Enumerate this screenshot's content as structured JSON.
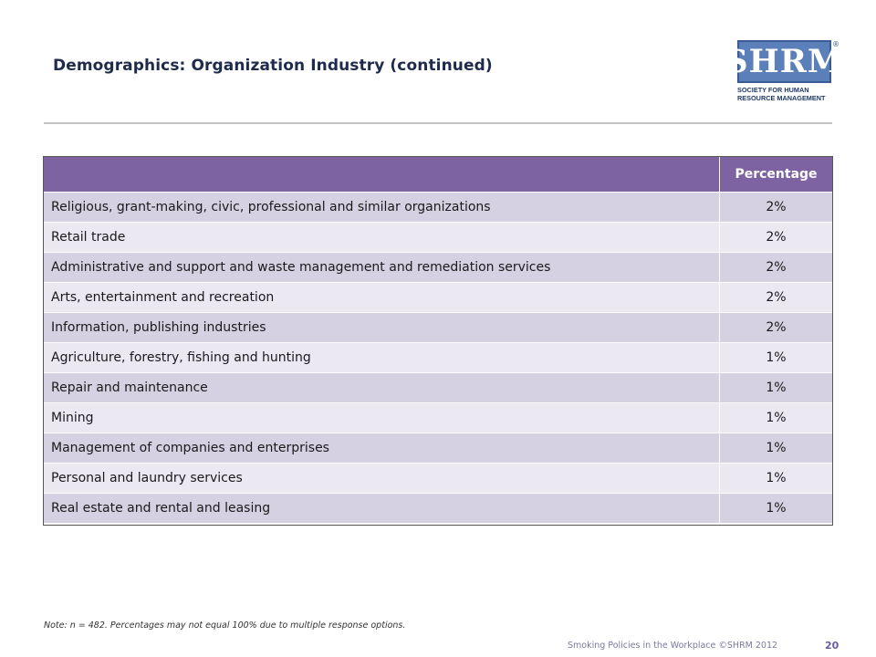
{
  "slide": {
    "title": "Demographics:  Organization  Industry  (continued)",
    "note": "Note:  n = 482.  Percentages  may not equal 100% due to multiple response options.",
    "footer": "Smoking Policies in the Workplace ©SHRM 2012",
    "page_number": "20"
  },
  "logo": {
    "name": "SHRM",
    "registered": "®",
    "line1": "SOCIETY FOR HUMAN",
    "line2": "RESOURCE MANAGEMENT"
  },
  "table": {
    "header_label": "",
    "header_value": "Percentage",
    "rows": [
      {
        "label": "Religious, grant-making, civic, professional and similar organizations",
        "value": "2%"
      },
      {
        "label": "Retail trade",
        "value": "2%"
      },
      {
        "label": "Administrative and support and waste management and remediation services",
        "value": "2%"
      },
      {
        "label": "Arts, entertainment and recreation",
        "value": "2%"
      },
      {
        "label": "Information, publishing industries",
        "value": "2%"
      },
      {
        "label": "Agriculture, forestry, fishing and hunting",
        "value": "1%"
      },
      {
        "label": "Repair and maintenance",
        "value": "1%"
      },
      {
        "label": "Mining",
        "value": "1%"
      },
      {
        "label": "Management of companies and enterprises",
        "value": "1%"
      },
      {
        "label": "Personal and laundry services",
        "value": "1%"
      },
      {
        "label": "Real estate and rental and leasing",
        "value": "1%"
      }
    ]
  },
  "colors": {
    "header_bg": "#7e63a3",
    "row_odd": "#d5d0e2",
    "row_even": "#ebe8f2",
    "title": "#1f2b4d",
    "logo_blue": "#5b7fb8"
  }
}
